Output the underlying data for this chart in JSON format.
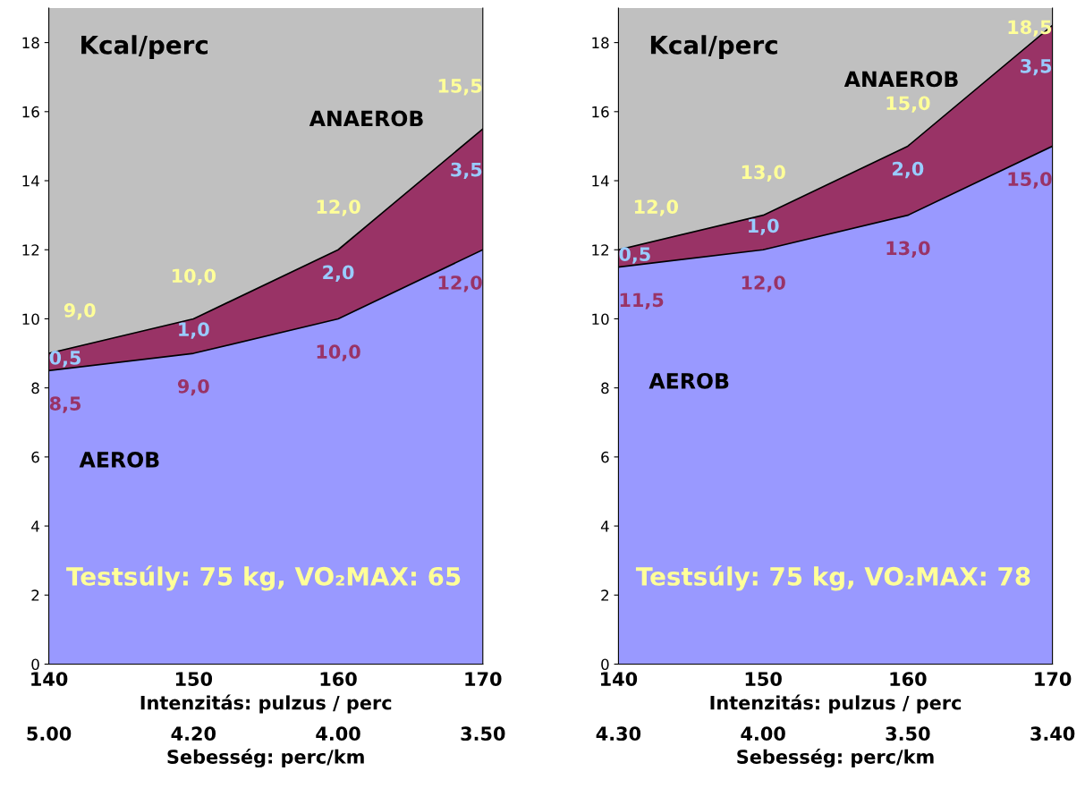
{
  "chart_data": [
    {
      "type": "area",
      "stacked": true,
      "categories": [
        "140",
        "150",
        "160",
        "170"
      ],
      "xlabel": "Intenzitás: pulzus / perc",
      "ylim": [
        0,
        19
      ],
      "yticks": [
        0,
        2,
        4,
        6,
        8,
        10,
        12,
        14,
        16,
        18
      ],
      "series": [
        {
          "name": "AEROB",
          "color": "#9999ff",
          "values": [
            8.5,
            9.0,
            10.0,
            12.0
          ],
          "value_labels": [
            "8,5",
            "9,0",
            "10,0",
            "12,0"
          ]
        },
        {
          "name": "ANAEROB",
          "color": "#993366",
          "values": [
            0.5,
            1.0,
            2.0,
            3.5
          ],
          "value_labels": [
            "0,5",
            "1,0",
            "2,0",
            "3,5"
          ]
        }
      ],
      "totals": [
        "9,0",
        "10,0",
        "12,0",
        "15,5"
      ],
      "annotations": [
        "Kcal/perc",
        "Testsúly: 75 kg, VO₂MAX: 65",
        "5.00",
        "4.20",
        "4.00",
        "3.50",
        "Sebesség: perc/km"
      ]
    },
    {
      "type": "area",
      "stacked": true,
      "categories": [
        "140",
        "150",
        "160",
        "170"
      ],
      "xlabel": "Intenzitás: pulzus / perc",
      "ylim": [
        0,
        19
      ],
      "yticks": [
        0,
        2,
        4,
        6,
        8,
        10,
        12,
        14,
        16,
        18
      ],
      "series": [
        {
          "name": "AEROB",
          "color": "#9999ff",
          "values": [
            11.5,
            12.0,
            13.0,
            15.0
          ],
          "value_labels": [
            "11,5",
            "12,0",
            "13,0",
            "15,0"
          ]
        },
        {
          "name": "ANAEROB",
          "color": "#993366",
          "values": [
            0.5,
            1.0,
            2.0,
            3.5
          ],
          "value_labels": [
            "0,5",
            "1,0",
            "2,0",
            "3,5"
          ]
        }
      ],
      "totals": [
        "12,0",
        "13,0",
        "15,0",
        "18,5"
      ],
      "annotations": [
        "Kcal/perc",
        "Testsúly: 75 kg, VO₂MAX: 78",
        "4.30",
        "4.00",
        "3.50",
        "3.40",
        "Sebesség: perc/km"
      ]
    }
  ]
}
